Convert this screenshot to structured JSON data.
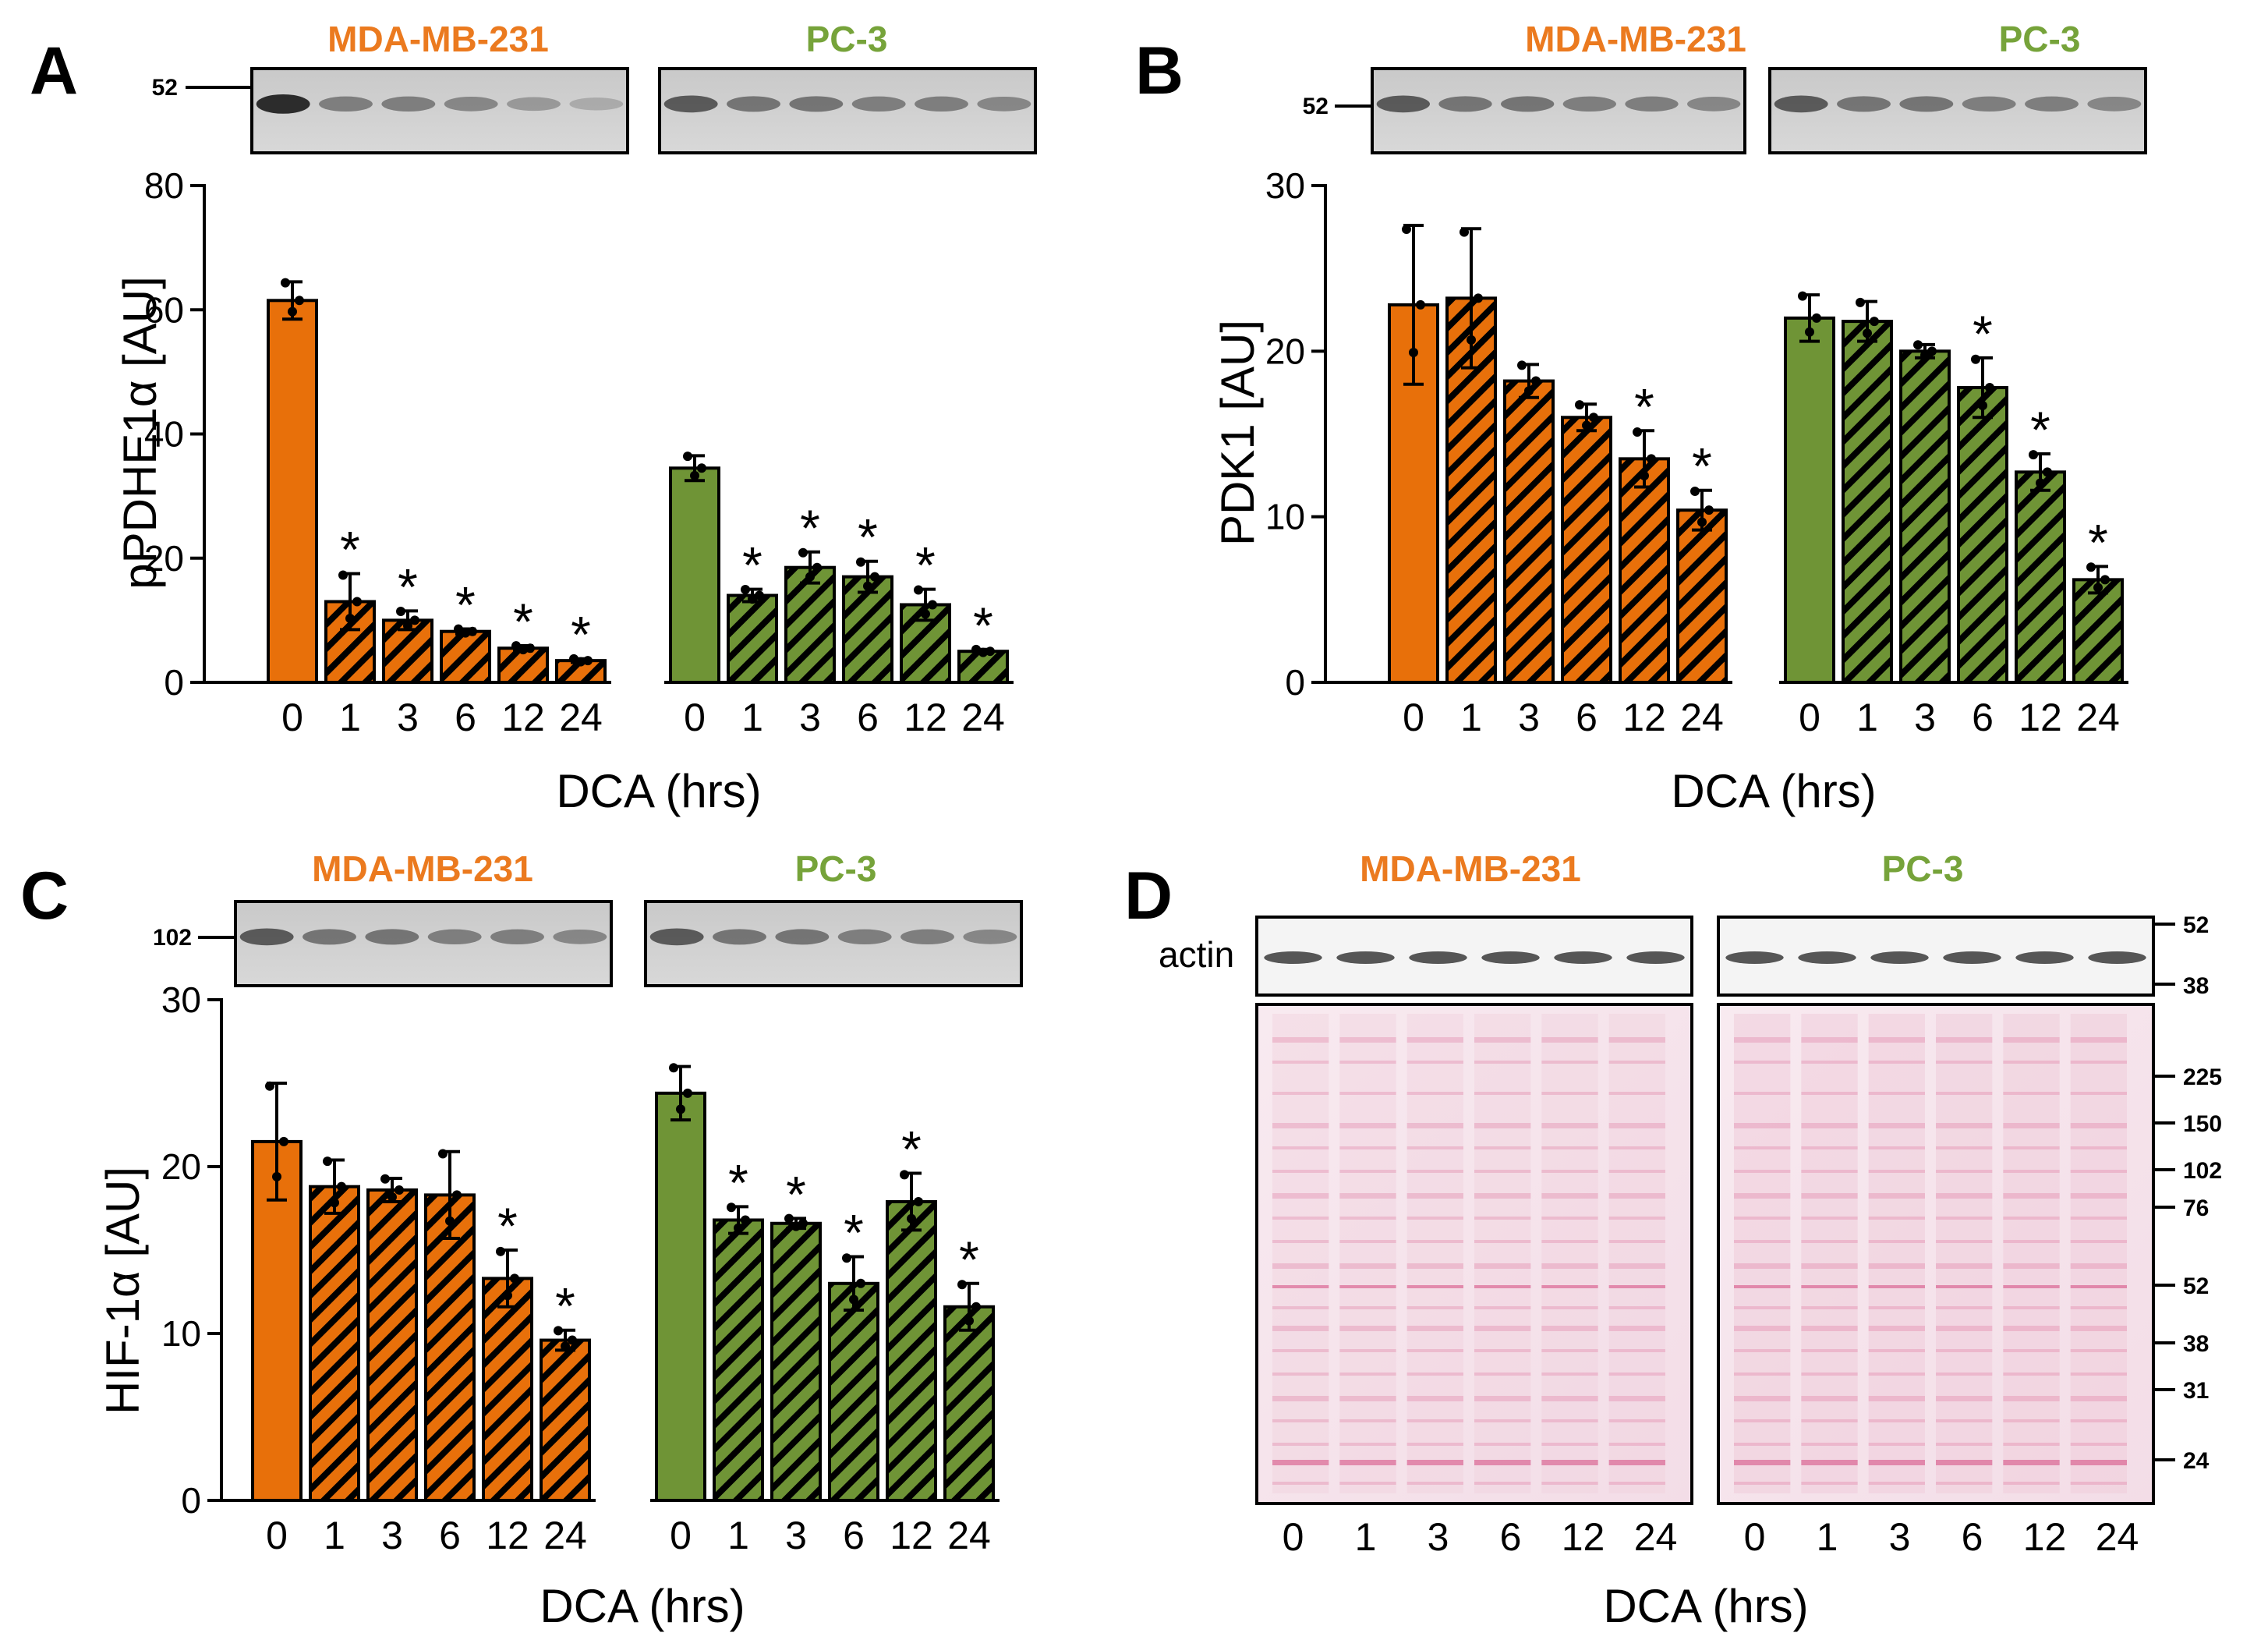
{
  "colors": {
    "mda": "#E8700A",
    "pc3": "#6F9436",
    "mda_label": "#EB7A1F",
    "pc3_label": "#76A33A",
    "black": "#000000"
  },
  "cell_lines": [
    "MDA-MB-231",
    "PC-3"
  ],
  "chart_data": [
    {
      "panel": "A",
      "type": "bar",
      "ylabel": "pPDHE1α [AU]",
      "xlabel": "DCA (hrs)",
      "ylim": [
        0,
        80
      ],
      "yticks": [
        0,
        20,
        40,
        60,
        80
      ],
      "blot_marker": "52",
      "categories": [
        "0",
        "1",
        "3",
        "6",
        "12",
        "24"
      ],
      "series": [
        {
          "name": "MDA-MB-231",
          "values": [
            61.5,
            13,
            10,
            8.2,
            5.5,
            3.5
          ],
          "errors": [
            3,
            4.5,
            1.5,
            0.4,
            0.4,
            0.3
          ],
          "significant": [
            false,
            true,
            true,
            true,
            true,
            true
          ]
        },
        {
          "name": "PC-3",
          "values": [
            34.5,
            14,
            18.5,
            17,
            12.5,
            5
          ],
          "errors": [
            2,
            1,
            2.5,
            2.5,
            2.5,
            0.3
          ],
          "significant": [
            false,
            true,
            true,
            true,
            true,
            true
          ]
        }
      ]
    },
    {
      "panel": "B",
      "type": "bar",
      "ylabel": "PDK1 [AU]",
      "xlabel": "DCA (hrs)",
      "ylim": [
        0,
        30
      ],
      "yticks": [
        0,
        10,
        20,
        30
      ],
      "blot_marker": "52",
      "categories": [
        "0",
        "1",
        "3",
        "6",
        "12",
        "24"
      ],
      "series": [
        {
          "name": "MDA-MB-231",
          "values": [
            22.8,
            23.2,
            18.2,
            16,
            13.5,
            10.4
          ],
          "errors": [
            4.8,
            4.2,
            1,
            0.8,
            1.7,
            1.2
          ],
          "significant": [
            false,
            false,
            false,
            false,
            true,
            true
          ]
        },
        {
          "name": "PC-3",
          "values": [
            22,
            21.8,
            20,
            17.8,
            12.7,
            6.2
          ],
          "errors": [
            1.4,
            1.2,
            0.4,
            1.8,
            1.1,
            0.8
          ],
          "significant": [
            false,
            false,
            false,
            true,
            true,
            true
          ]
        }
      ]
    },
    {
      "panel": "C",
      "type": "bar",
      "ylabel": "HIF-1α [AU]",
      "xlabel": "DCA (hrs)",
      "ylim": [
        0,
        30
      ],
      "yticks": [
        0,
        10,
        20,
        30
      ],
      "blot_marker": "102",
      "categories": [
        "0",
        "1",
        "3",
        "6",
        "12",
        "24"
      ],
      "series": [
        {
          "name": "MDA-MB-231",
          "values": [
            21.5,
            18.8,
            18.6,
            18.3,
            13.3,
            9.6
          ],
          "errors": [
            3.5,
            1.6,
            0.7,
            2.6,
            1.7,
            0.6
          ],
          "significant": [
            false,
            false,
            false,
            false,
            true,
            true
          ]
        },
        {
          "name": "PC-3",
          "values": [
            24.4,
            16.8,
            16.6,
            13,
            17.9,
            11.6
          ],
          "errors": [
            1.6,
            0.8,
            0.3,
            1.6,
            1.7,
            1.4
          ],
          "significant": [
            false,
            true,
            true,
            true,
            true,
            true
          ]
        }
      ]
    }
  ],
  "panel_d": {
    "letter": "D",
    "actin_label": "actin",
    "actin_markers": [
      "52",
      "38"
    ],
    "ponceau_markers": [
      "225",
      "150",
      "102",
      "76",
      "52",
      "38",
      "31",
      "24"
    ],
    "lanes": [
      "0",
      "1",
      "3",
      "6",
      "12",
      "24"
    ],
    "xlabel": "DCA (hrs)"
  }
}
